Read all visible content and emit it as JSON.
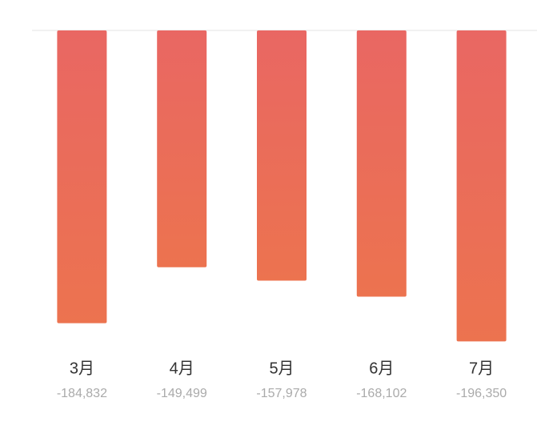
{
  "chart_data": {
    "type": "bar",
    "categories": [
      "3月",
      "4月",
      "5月",
      "6月",
      "7月"
    ],
    "values": [
      -184832,
      -149499,
      -157978,
      -168102,
      -196350
    ],
    "value_labels": [
      "-184,832",
      "-149,499",
      "-157,978",
      "-168,102",
      "-196,350"
    ],
    "ylim": [
      -200000,
      0
    ]
  }
}
